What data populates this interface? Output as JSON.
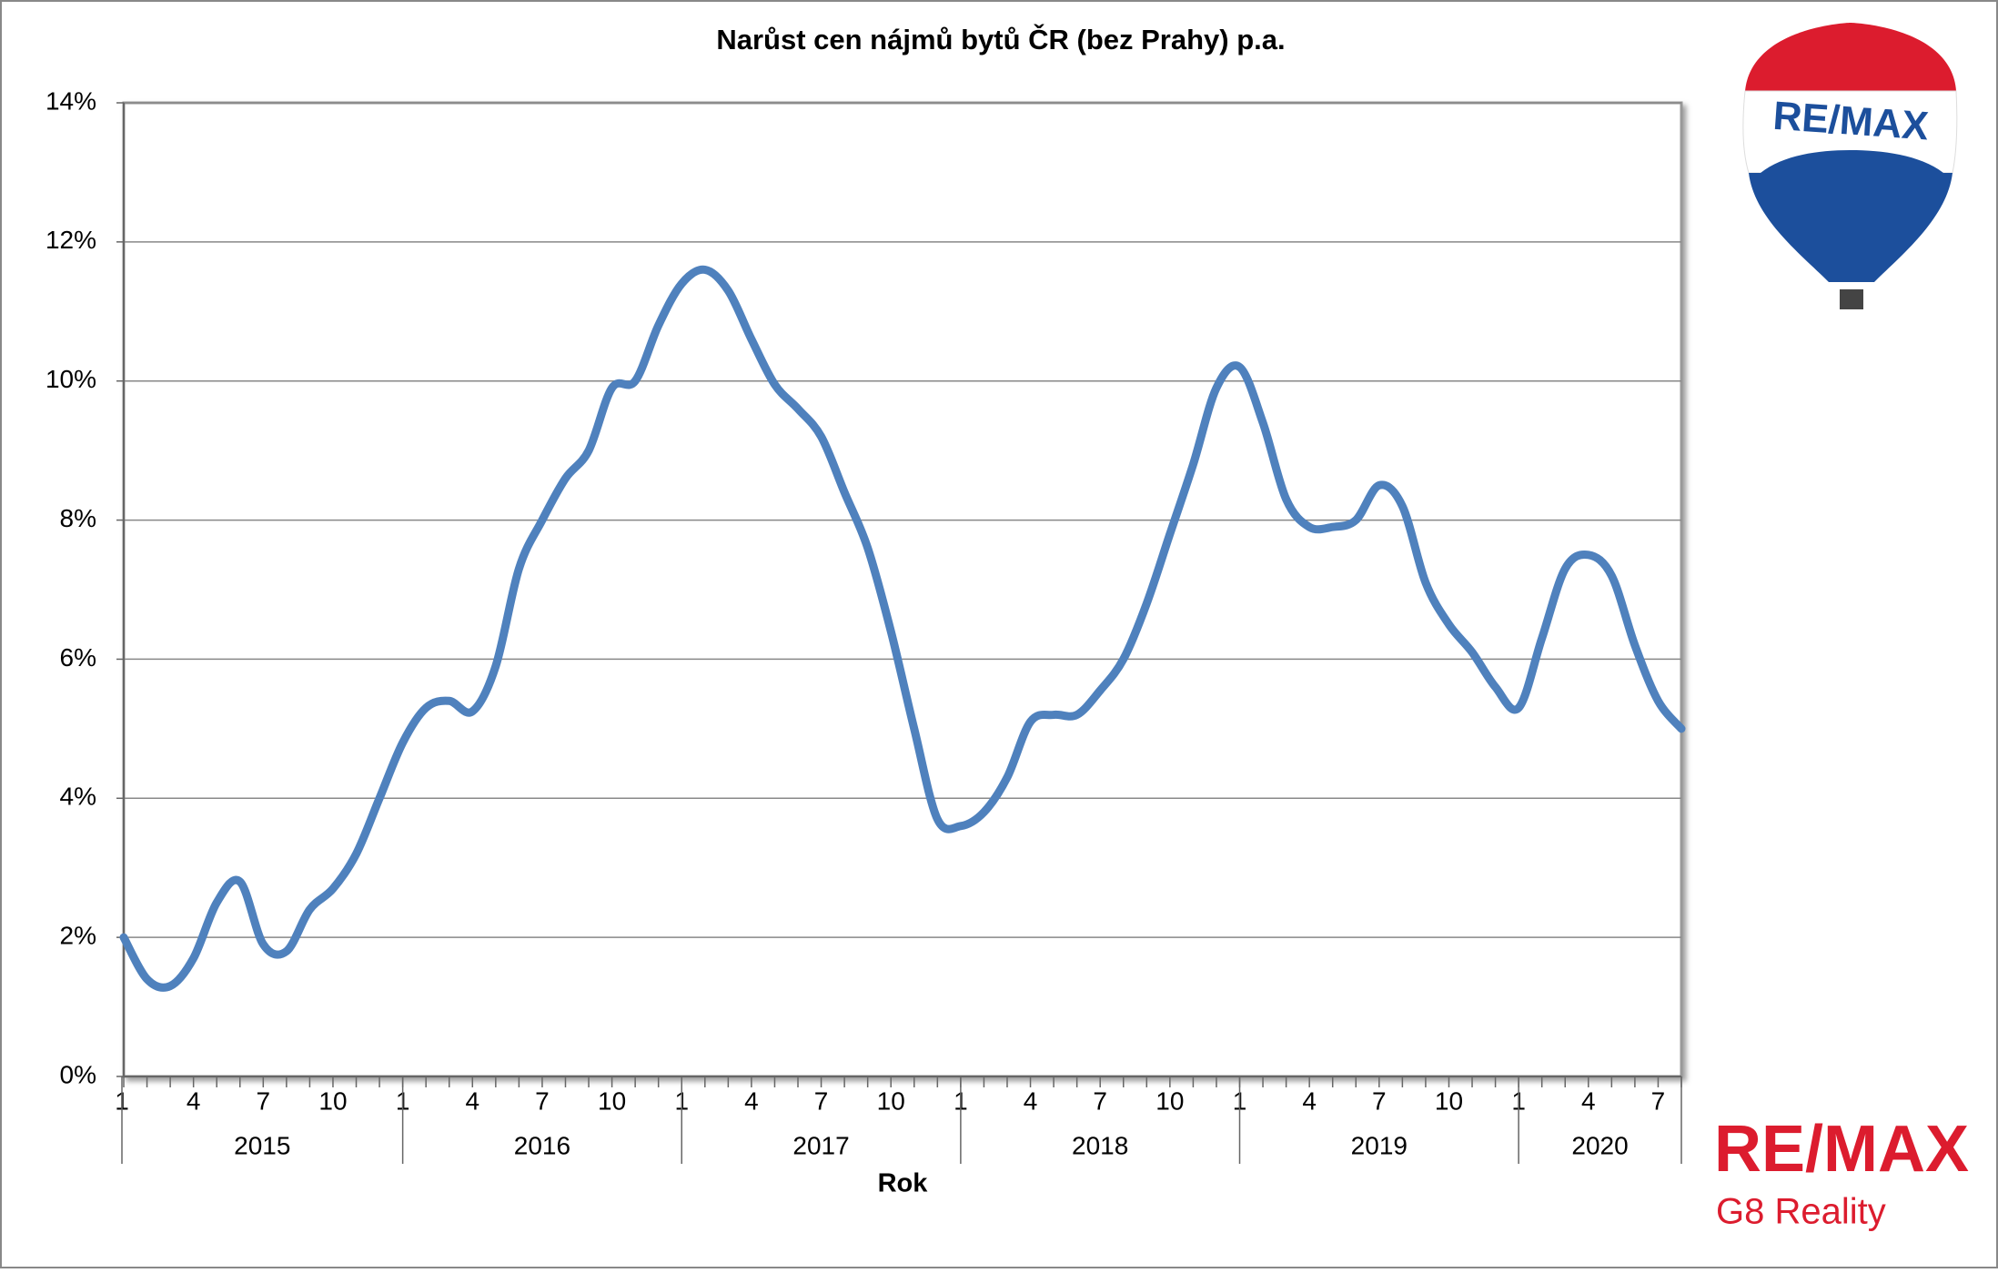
{
  "chart_data": {
    "type": "line",
    "title": "Narůst cen nájmů bytů ČR (bez Prahy) p.a.",
    "x_label": "Rok",
    "categories": [
      "1",
      null,
      null,
      "4",
      null,
      null,
      "7",
      null,
      null,
      "10",
      null,
      null,
      "1",
      null,
      null,
      "4",
      null,
      null,
      "7",
      null,
      null,
      "10",
      null,
      null,
      "1",
      null,
      null,
      "4",
      null,
      null,
      "7",
      null,
      null,
      "10",
      null,
      null,
      "1",
      null,
      null,
      "4",
      null,
      null,
      "7",
      null,
      null,
      "10",
      null,
      null,
      "1",
      null,
      null,
      "4",
      null,
      null,
      "7",
      null,
      null,
      "10",
      null,
      null,
      "1",
      null,
      null,
      "4",
      null,
      null,
      "7",
      null
    ],
    "years": [
      "2015",
      "2016",
      "2017",
      "2018",
      "2019",
      "2020"
    ],
    "series": [
      {
        "color": "#4f81bd",
        "values": [
          2.0,
          1.4,
          1.3,
          1.7,
          2.5,
          2.8,
          1.9,
          1.8,
          2.4,
          2.7,
          3.2,
          4.0,
          4.8,
          5.3,
          5.4,
          5.25,
          5.9,
          7.3,
          8.0,
          8.6,
          9.0,
          9.9,
          10.0,
          10.8,
          11.4,
          11.6,
          11.3,
          10.6,
          9.95,
          9.6,
          9.2,
          8.4,
          7.6,
          6.4,
          5.0,
          3.7,
          3.6,
          3.8,
          4.3,
          5.1,
          5.2,
          5.2,
          5.55,
          6.0,
          6.8,
          7.8,
          8.8,
          9.9,
          10.2,
          9.4,
          8.3,
          7.9,
          7.9,
          8.0,
          8.5,
          8.2,
          7.1,
          6.5,
          6.1,
          5.6,
          5.3,
          6.3,
          7.3,
          7.5,
          7.2,
          6.2,
          5.4,
          5.0
        ]
      }
    ],
    "ylim": [
      0,
      14
    ],
    "yticks": [
      {
        "value": 0,
        "label": "0%"
      },
      {
        "value": 2,
        "label": "2%"
      },
      {
        "value": 4,
        "label": "4%"
      },
      {
        "value": 6,
        "label": "6%"
      },
      {
        "value": 8,
        "label": "8%"
      },
      {
        "value": 10,
        "label": "10%"
      },
      {
        "value": 12,
        "label": "12%"
      },
      {
        "value": 14,
        "label": "14%"
      }
    ],
    "grid": true
  },
  "branding": {
    "balloon_text": "RE/MAX",
    "logo_text": "RE/MAX",
    "office": "G8 Reality"
  }
}
